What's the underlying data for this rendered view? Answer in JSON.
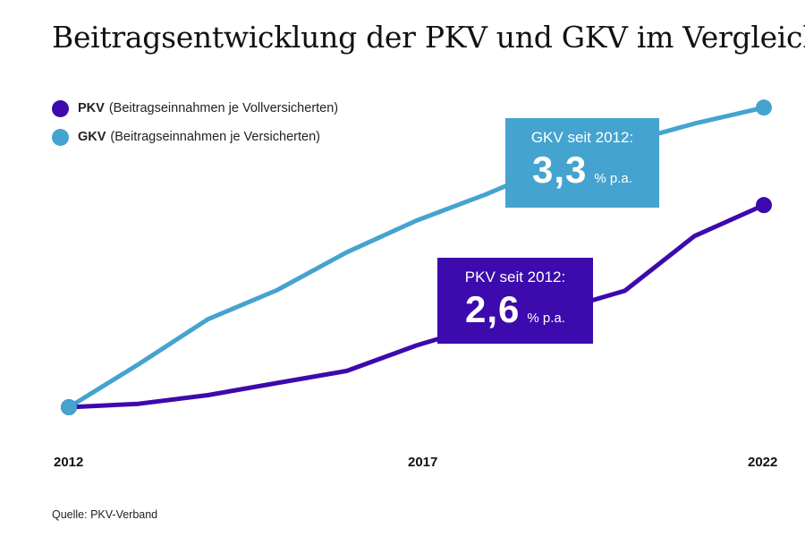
{
  "title": "Beitragsentwicklung der PKV und GKV im Vergleich",
  "source": "Quelle: PKV-Verband",
  "colors": {
    "pkv": "#3d0aad",
    "gkv": "#45a3cf"
  },
  "callouts": {
    "gkv": {
      "label": "GKV seit 2012:",
      "value": "3,3",
      "unit": "% p.a."
    },
    "pkv": {
      "label": "PKV seit 2012:",
      "value": "2,6",
      "unit": "% p.a."
    }
  },
  "chart_data": {
    "type": "line",
    "title": "Beitragsentwicklung der PKV und GKV im Vergleich",
    "xlabel": "",
    "ylabel": "",
    "x": [
      2012,
      2013,
      2014,
      2015,
      2016,
      2017,
      2018,
      2019,
      2020,
      2021,
      2022
    ],
    "tick_labels": [
      "2012",
      "2017",
      "2022"
    ],
    "tick_years": [
      2012,
      2017,
      2022
    ],
    "ylim": [
      0,
      100
    ],
    "series": [
      {
        "key": "pkv",
        "name": "PKV",
        "description": "(Beitragseinnahmen je Vollversicherten)",
        "values": [
          0,
          1.2,
          4.3,
          8.6,
          12.9,
          21.9,
          29.3,
          34.1,
          41.3,
          60.7,
          71.7
        ]
      },
      {
        "key": "gkv",
        "name": "GKV",
        "description": "(Beitragseinnahmen je Versicherten)",
        "values": [
          0,
          15.2,
          31.2,
          41.6,
          55.0,
          66.2,
          75.5,
          85.9,
          93.8,
          100.6,
          106.3
        ]
      }
    ],
    "legend_position": "top-left",
    "grid": false
  }
}
